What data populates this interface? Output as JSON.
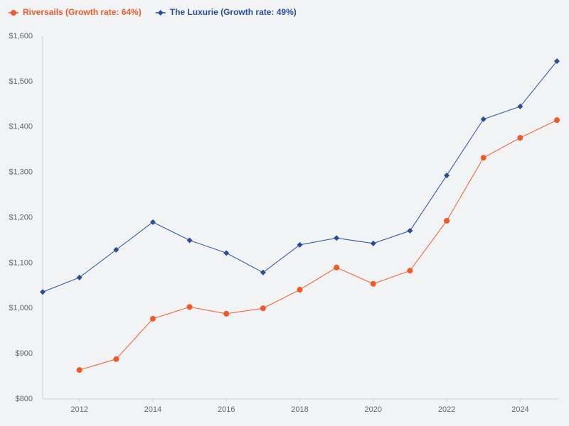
{
  "chart_data": {
    "type": "line",
    "x": [
      2011,
      2012,
      2013,
      2014,
      2015,
      2016,
      2017,
      2018,
      2019,
      2020,
      2021,
      2022,
      2023,
      2024,
      2025
    ],
    "series": [
      {
        "name": "Riversails (Growth rate: 64%)",
        "color": "#f05a28",
        "marker": "circle",
        "values": [
          null,
          864,
          888,
          977,
          1003,
          988,
          1000,
          1041,
          1090,
          1054,
          1083,
          1193,
          1332,
          1376,
          1415
        ]
      },
      {
        "name": "The Luxurie (Growth rate: 49%)",
        "color": "#2a4d9b",
        "marker": "diamond",
        "values": [
          1036,
          1068,
          1129,
          1190,
          1150,
          1122,
          1079,
          1140,
          1155,
          1143,
          1171,
          1293,
          1417,
          1445,
          1545
        ]
      }
    ],
    "xlim": [
      2011,
      2025
    ],
    "xticks": [
      2012,
      2014,
      2016,
      2018,
      2020,
      2022,
      2024
    ],
    "ylim": [
      800,
      1600
    ],
    "yticks": [
      {
        "value": 800,
        "label": "$800"
      },
      {
        "value": 900,
        "label": "$900"
      },
      {
        "value": 1000,
        "label": "$1,000"
      },
      {
        "value": 1100,
        "label": "$1,100"
      },
      {
        "value": 1200,
        "label": "$1,200"
      },
      {
        "value": 1300,
        "label": "$1,300"
      },
      {
        "value": 1400,
        "label": "$1,400"
      },
      {
        "value": 1500,
        "label": "$1,500"
      },
      {
        "value": 1600,
        "label": "$1,600"
      }
    ],
    "grid": false,
    "legend": "top-left"
  }
}
